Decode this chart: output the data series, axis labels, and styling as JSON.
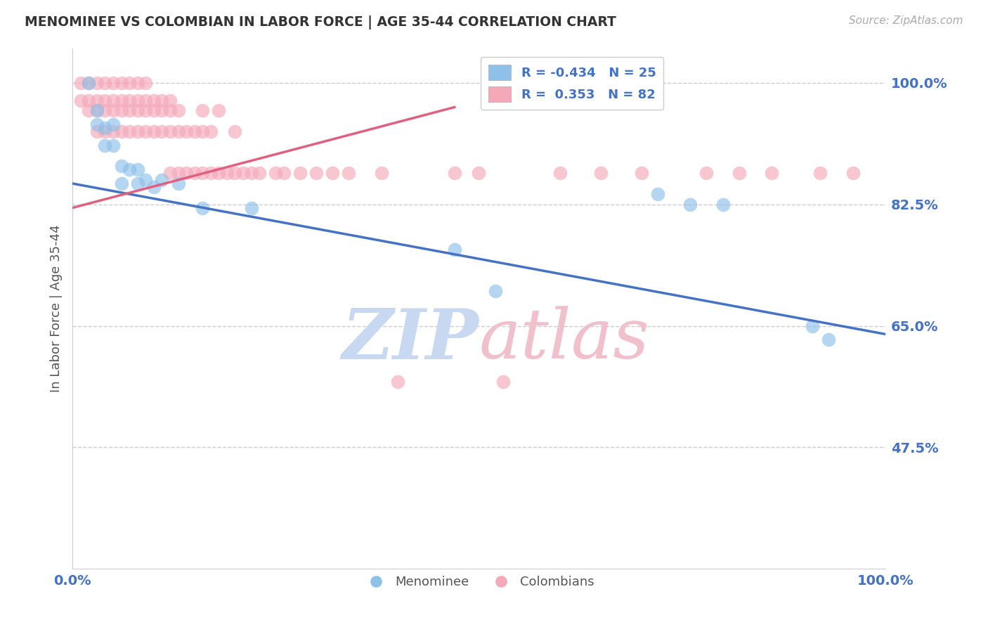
{
  "title": "MENOMINEE VS COLOMBIAN IN LABOR FORCE | AGE 35-44 CORRELATION CHART",
  "source_text": "Source: ZipAtlas.com",
  "xlabel": "",
  "ylabel": "In Labor Force | Age 35-44",
  "xlim": [
    0.0,
    1.0
  ],
  "ylim": [
    0.3,
    1.05
  ],
  "yticks": [
    0.475,
    0.65,
    0.825,
    1.0
  ],
  "ytick_labels": [
    "47.5%",
    "65.0%",
    "82.5%",
    "100.0%"
  ],
  "xticks": [
    0.0,
    1.0
  ],
  "xtick_labels": [
    "0.0%",
    "100.0%"
  ],
  "grid_color": "#cccccc",
  "bg_color": "#ffffff",
  "blue_color": "#8ec0e8",
  "pink_color": "#f4a8b8",
  "blue_line_color": "#4472c4",
  "pink_line_color": "#e06080",
  "blue_R": -0.434,
  "blue_N": 25,
  "pink_R": 0.353,
  "pink_N": 82,
  "watermark": "ZIPatlas",
  "watermark_blue": "#c8d8f0",
  "watermark_pink": "#f0c0c8",
  "legend_blue_label": "Menominee",
  "legend_pink_label": "Colombians",
  "menominee_x": [
    0.02,
    0.03,
    0.03,
    0.04,
    0.04,
    0.05,
    0.05,
    0.06,
    0.06,
    0.07,
    0.08,
    0.08,
    0.09,
    0.1,
    0.11,
    0.13,
    0.16,
    0.22,
    0.47,
    0.52,
    0.72,
    0.76,
    0.8,
    0.91,
    0.93
  ],
  "menominee_y": [
    1.0,
    0.96,
    0.94,
    0.935,
    0.91,
    0.94,
    0.91,
    0.88,
    0.855,
    0.875,
    0.875,
    0.855,
    0.86,
    0.85,
    0.86,
    0.855,
    0.82,
    0.82,
    0.76,
    0.7,
    0.84,
    0.825,
    0.825,
    0.65,
    0.63
  ],
  "colombian_x": [
    0.01,
    0.01,
    0.02,
    0.02,
    0.02,
    0.03,
    0.03,
    0.03,
    0.03,
    0.04,
    0.04,
    0.04,
    0.04,
    0.05,
    0.05,
    0.05,
    0.05,
    0.06,
    0.06,
    0.06,
    0.06,
    0.07,
    0.07,
    0.07,
    0.07,
    0.08,
    0.08,
    0.08,
    0.08,
    0.09,
    0.09,
    0.09,
    0.09,
    0.1,
    0.1,
    0.1,
    0.11,
    0.11,
    0.11,
    0.12,
    0.12,
    0.12,
    0.12,
    0.13,
    0.13,
    0.13,
    0.14,
    0.14,
    0.15,
    0.15,
    0.16,
    0.16,
    0.16,
    0.17,
    0.17,
    0.18,
    0.18,
    0.19,
    0.2,
    0.2,
    0.21,
    0.22,
    0.23,
    0.25,
    0.26,
    0.28,
    0.3,
    0.32,
    0.34,
    0.38,
    0.4,
    0.47,
    0.5,
    0.53,
    0.6,
    0.65,
    0.7,
    0.78,
    0.82,
    0.86,
    0.92,
    0.96
  ],
  "colombian_y": [
    0.975,
    1.0,
    0.96,
    0.975,
    1.0,
    0.93,
    0.96,
    0.975,
    1.0,
    0.93,
    0.96,
    0.975,
    1.0,
    0.93,
    0.96,
    0.975,
    1.0,
    0.93,
    0.96,
    0.975,
    1.0,
    0.93,
    0.96,
    0.975,
    1.0,
    0.93,
    0.96,
    0.975,
    1.0,
    0.93,
    0.96,
    0.975,
    1.0,
    0.93,
    0.96,
    0.975,
    0.93,
    0.96,
    0.975,
    0.93,
    0.96,
    0.975,
    0.87,
    0.93,
    0.87,
    0.96,
    0.87,
    0.93,
    0.87,
    0.93,
    0.87,
    0.93,
    0.96,
    0.87,
    0.93,
    0.87,
    0.96,
    0.87,
    0.87,
    0.93,
    0.87,
    0.87,
    0.87,
    0.87,
    0.87,
    0.87,
    0.87,
    0.87,
    0.87,
    0.87,
    0.57,
    0.87,
    0.87,
    0.57,
    0.87,
    0.87,
    0.87,
    0.87,
    0.87,
    0.87,
    0.87,
    0.87
  ],
  "blue_line_x0": 0.0,
  "blue_line_y0": 0.855,
  "blue_line_x1": 1.0,
  "blue_line_y1": 0.638,
  "pink_line_x0": 0.0,
  "pink_line_y0": 0.82,
  "pink_line_x1": 0.47,
  "pink_line_y1": 0.965
}
